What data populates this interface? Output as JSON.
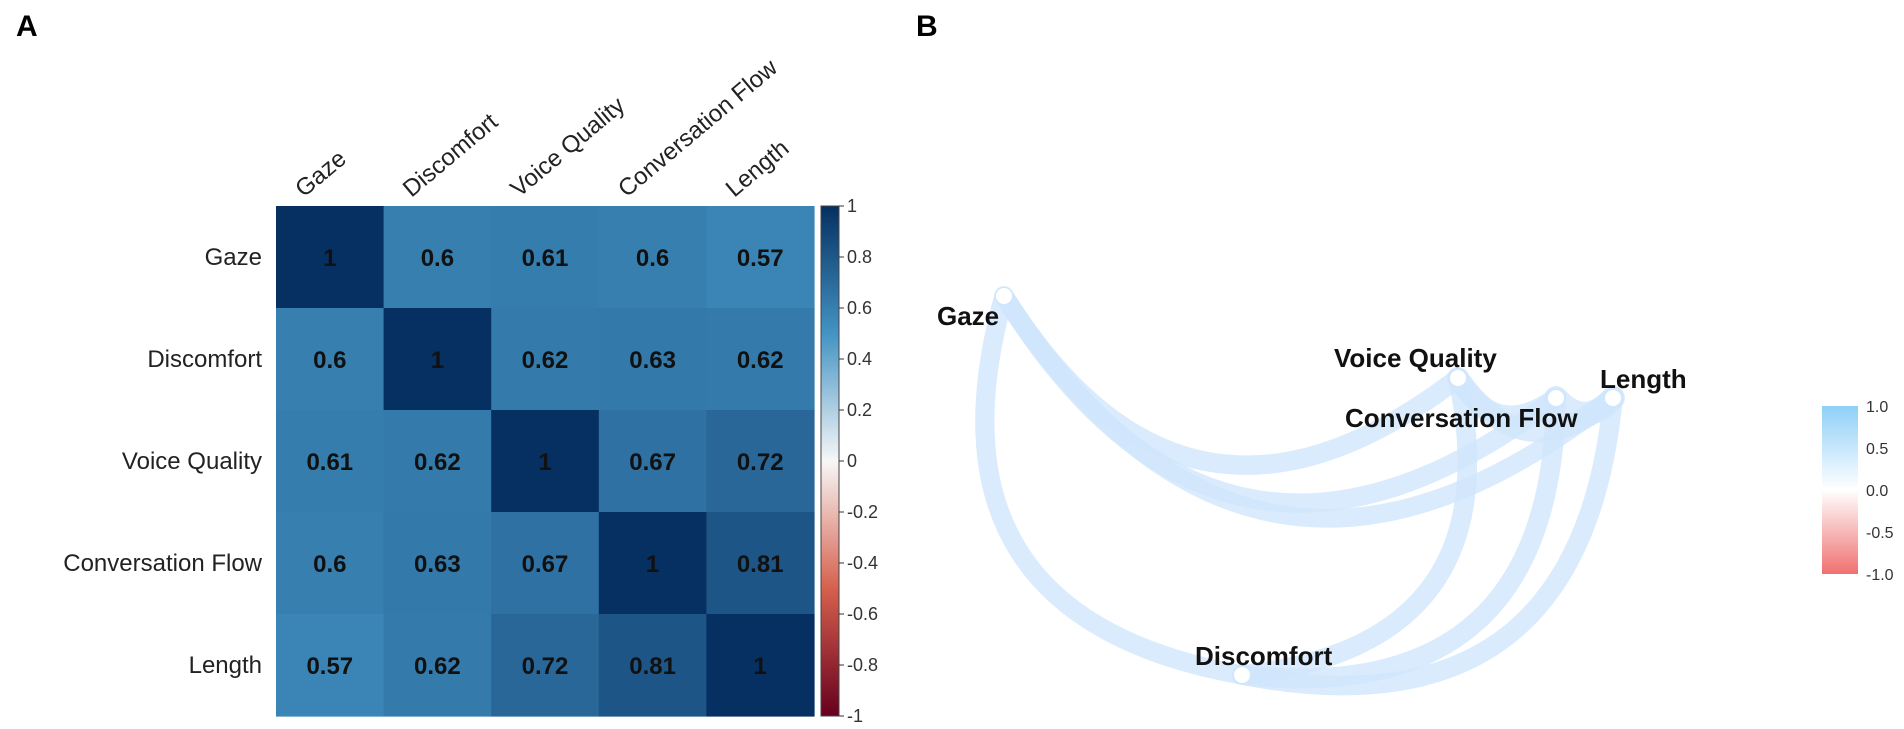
{
  "panels": {
    "a_label": "A",
    "b_label": "B"
  },
  "chart_data": [
    {
      "type": "heatmap",
      "panel": "A",
      "variables": [
        "Gaze",
        "Discomfort",
        "Voice Quality",
        "Conversation Flow",
        "Length"
      ],
      "matrix": [
        [
          1,
          0.6,
          0.61,
          0.6,
          0.57
        ],
        [
          0.6,
          1,
          0.62,
          0.63,
          0.62
        ],
        [
          0.61,
          0.62,
          1,
          0.67,
          0.72
        ],
        [
          0.6,
          0.63,
          0.67,
          1,
          0.81
        ],
        [
          0.57,
          0.62,
          0.72,
          0.81,
          1
        ]
      ],
      "colorbar": {
        "range": [
          -1,
          1
        ],
        "ticks": [
          1,
          0.8,
          0.6,
          0.4,
          0.2,
          0,
          -0.2,
          -0.4,
          -0.6,
          -0.8,
          -1
        ],
        "tick_labels": [
          "1",
          "0.8",
          "0.6",
          "0.4",
          "0.2",
          "0",
          "-0.2",
          "-0.4",
          "-0.6",
          "-0.8",
          "-1"
        ]
      },
      "colors": {
        "neg_end": "#67001f",
        "neg_mid": "#d6604d",
        "zero": "#f7f7f7",
        "pos_mid": "#4393c3",
        "pos_end": "#053061"
      }
    },
    {
      "type": "network",
      "panel": "B",
      "nodes": [
        "Gaze",
        "Voice Quality",
        "Length",
        "Conversation Flow",
        "Discomfort"
      ],
      "edges": [
        {
          "from": "Gaze",
          "to": "Discomfort",
          "weight": 0.6
        },
        {
          "from": "Gaze",
          "to": "Voice Quality",
          "weight": 0.61
        },
        {
          "from": "Gaze",
          "to": "Conversation Flow",
          "weight": 0.6
        },
        {
          "from": "Gaze",
          "to": "Length",
          "weight": 0.57
        },
        {
          "from": "Discomfort",
          "to": "Voice Quality",
          "weight": 0.62
        },
        {
          "from": "Discomfort",
          "to": "Conversation Flow",
          "weight": 0.63
        },
        {
          "from": "Discomfort",
          "to": "Length",
          "weight": 0.62
        },
        {
          "from": "Voice Quality",
          "to": "Conversation Flow",
          "weight": 0.67
        },
        {
          "from": "Voice Quality",
          "to": "Length",
          "weight": 0.72
        },
        {
          "from": "Conversation Flow",
          "to": "Length",
          "weight": 0.81
        }
      ],
      "legend": {
        "range": [
          -1.0,
          1.0
        ],
        "tick_labels": [
          "1.0",
          "0.5",
          "0.0",
          "-0.5",
          "-1.0"
        ],
        "ticks": [
          1.0,
          0.5,
          0.0,
          -0.5,
          -1.0
        ]
      },
      "colors": {
        "positive": "#8fcff8",
        "neutral": "#ffffff",
        "negative": "#f07070",
        "edge": "#cfe6fb",
        "node": "#ffffff"
      }
    }
  ]
}
